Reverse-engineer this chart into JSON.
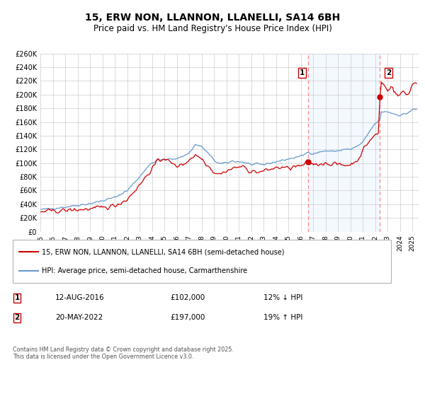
{
  "title": "15, ERW NON, LLANNON, LLANELLI, SA14 6BH",
  "subtitle": "Price paid vs. HM Land Registry's House Price Index (HPI)",
  "title_fontsize": 10,
  "subtitle_fontsize": 8.5,
  "background_color": "#ffffff",
  "plot_bg_color": "#ffffff",
  "grid_color": "#cccccc",
  "ylim": [
    0,
    260000
  ],
  "yticks": [
    0,
    20000,
    40000,
    60000,
    80000,
    100000,
    120000,
    140000,
    160000,
    180000,
    200000,
    220000,
    240000,
    260000
  ],
  "ytick_labels": [
    "£0",
    "£20K",
    "£40K",
    "£60K",
    "£80K",
    "£100K",
    "£120K",
    "£140K",
    "£160K",
    "£180K",
    "£200K",
    "£220K",
    "£240K",
    "£260K"
  ],
  "xlim_start": 1995.0,
  "xlim_end": 2025.5,
  "xticks": [
    1995,
    1996,
    1997,
    1998,
    1999,
    2000,
    2001,
    2002,
    2003,
    2004,
    2005,
    2006,
    2007,
    2008,
    2009,
    2010,
    2011,
    2012,
    2013,
    2014,
    2015,
    2016,
    2017,
    2018,
    2019,
    2020,
    2021,
    2022,
    2023,
    2024,
    2025
  ],
  "red_line_color": "#cc0000",
  "blue_line_color": "#6699cc",
  "marker1_x": 2016.617,
  "marker1_y": 102000,
  "marker2_x": 2022.383,
  "marker2_y": 197000,
  "vline1_x": 2016.617,
  "vline2_x": 2022.383,
  "vline_color": "#ff8888",
  "vline_style": "--",
  "span_color": "#ddeeff",
  "annotation1_label": "1",
  "annotation2_label": "2",
  "legend_line1": "15, ERW NON, LLANNON, LLANELLI, SA14 6BH (semi-detached house)",
  "legend_line2": "HPI: Average price, semi-detached house, Carmarthenshire",
  "table_row1": [
    "1",
    "12-AUG-2016",
    "£102,000",
    "12% ↓ HPI"
  ],
  "table_row2": [
    "2",
    "20-MAY-2022",
    "£197,000",
    "19% ↑ HPI"
  ],
  "footer": "Contains HM Land Registry data © Crown copyright and database right 2025.\nThis data is licensed under the Open Government Licence v3.0."
}
